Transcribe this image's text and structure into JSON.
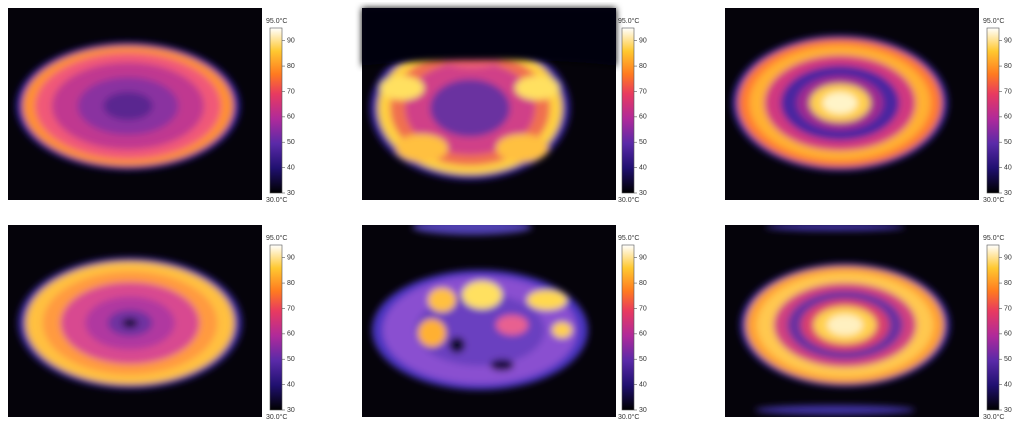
{
  "panels": [
    {
      "colorbar": {
        "top_label": "95.0°C",
        "bottom_label": "30.0°C",
        "ticks": [
          30,
          40,
          50,
          60,
          70,
          80,
          90
        ]
      }
    },
    {
      "colorbar": {
        "top_label": "95.0°C",
        "bottom_label": "30.0°C",
        "ticks": [
          30,
          40,
          50,
          60,
          70,
          80,
          90
        ]
      }
    },
    {
      "colorbar": {
        "top_label": "95.0°C",
        "bottom_label": "30.0°C",
        "ticks": [
          30,
          40,
          50,
          60,
          70,
          80,
          90
        ]
      }
    },
    {
      "colorbar": {
        "top_label": "95.0°C",
        "bottom_label": "30.0°C",
        "ticks": [
          30,
          40,
          50,
          60,
          70,
          80,
          90
        ]
      }
    },
    {
      "colorbar": {
        "top_label": "95.0°C",
        "bottom_label": "30.0°C",
        "ticks": [
          30,
          40,
          50,
          60,
          70,
          80,
          90
        ]
      }
    },
    {
      "colorbar": {
        "top_label": "95.0°C",
        "bottom_label": "30.0°C",
        "ticks": [
          30,
          40,
          50,
          60,
          70,
          80,
          90
        ]
      }
    }
  ]
}
